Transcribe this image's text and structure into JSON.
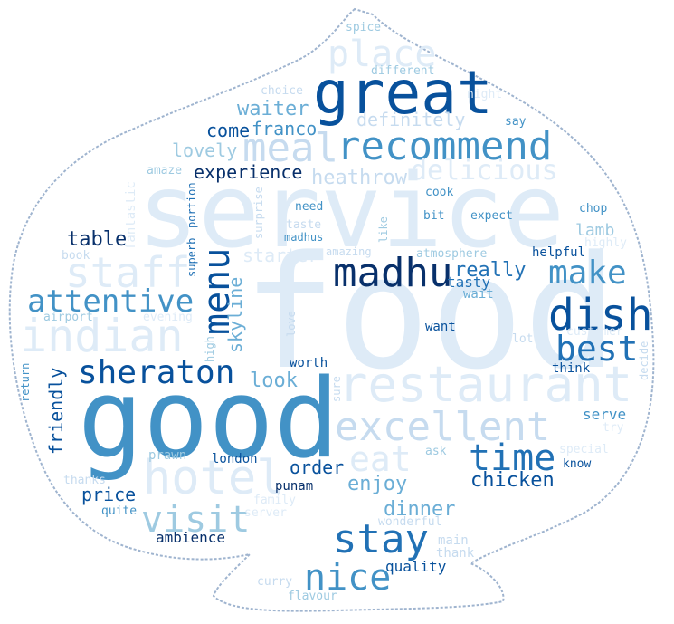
{
  "word_cloud": {
    "colors": {
      "background": "#ffffff",
      "outline": "#9fb4cf",
      "palette": [
        "#08306b",
        "#08519c",
        "#2171b5",
        "#4292c6",
        "#6baed6",
        "#9ecae1",
        "#c6dbef",
        "#deebf7"
      ]
    },
    "words": [
      {
        "id": "food",
        "text": "food"
      },
      {
        "id": "service",
        "text": "service"
      },
      {
        "id": "good",
        "text": "good"
      },
      {
        "id": "great",
        "text": "great"
      },
      {
        "id": "restaurant",
        "text": "restaurant"
      },
      {
        "id": "indian",
        "text": "indian"
      },
      {
        "id": "hotel",
        "text": "hotel"
      },
      {
        "id": "madhu",
        "text": "madhu"
      },
      {
        "id": "recommend",
        "text": "recommend"
      },
      {
        "id": "staff",
        "text": "staff"
      },
      {
        "id": "excellent",
        "text": "excellent"
      },
      {
        "id": "place",
        "text": "place"
      },
      {
        "id": "meal",
        "text": "meal"
      },
      {
        "id": "dish",
        "text": "dish"
      },
      {
        "id": "menu",
        "text": "menu"
      },
      {
        "id": "sheraton",
        "text": "sheraton"
      },
      {
        "id": "attentive",
        "text": "attentive"
      },
      {
        "id": "make",
        "text": "make"
      },
      {
        "id": "best",
        "text": "best"
      },
      {
        "id": "visit",
        "text": "visit"
      },
      {
        "id": "stay",
        "text": "stay"
      },
      {
        "id": "nice",
        "text": "nice"
      },
      {
        "id": "time",
        "text": "time"
      },
      {
        "id": "eat",
        "text": "eat"
      },
      {
        "id": "delicious",
        "text": "delicious"
      },
      {
        "id": "skyline",
        "text": "skyline"
      },
      {
        "id": "really",
        "text": "really"
      },
      {
        "id": "heathrow",
        "text": "heathrow"
      },
      {
        "id": "definitely",
        "text": "definitely"
      },
      {
        "id": "waiter",
        "text": "waiter"
      },
      {
        "id": "franco",
        "text": "franco"
      },
      {
        "id": "come",
        "text": "come"
      },
      {
        "id": "lovely",
        "text": "lovely"
      },
      {
        "id": "experience",
        "text": "experience"
      },
      {
        "id": "table",
        "text": "table"
      },
      {
        "id": "friendly",
        "text": "friendly"
      },
      {
        "id": "chicken",
        "text": "chicken"
      },
      {
        "id": "dinner",
        "text": "dinner"
      },
      {
        "id": "enjoy",
        "text": "enjoy"
      },
      {
        "id": "order",
        "text": "order"
      },
      {
        "id": "price",
        "text": "price"
      },
      {
        "id": "starter",
        "text": "starter"
      },
      {
        "id": "look",
        "text": "look"
      },
      {
        "id": "tasty",
        "text": "tasty"
      },
      {
        "id": "lamb",
        "text": "lamb"
      },
      {
        "id": "serve",
        "text": "serve"
      },
      {
        "id": "ambience",
        "text": "ambience"
      },
      {
        "id": "quality",
        "text": "quality"
      },
      {
        "id": "wait",
        "text": "wait"
      },
      {
        "id": "helpful",
        "text": "helpful"
      },
      {
        "id": "fantastic",
        "text": "fantastic"
      },
      {
        "id": "main",
        "text": "main"
      },
      {
        "id": "thank",
        "text": "thank"
      },
      {
        "id": "punam",
        "text": "punam"
      },
      {
        "id": "london",
        "text": "london"
      },
      {
        "id": "prawn",
        "text": "prawn"
      },
      {
        "id": "worth",
        "text": "worth"
      },
      {
        "id": "want",
        "text": "want"
      },
      {
        "id": "think",
        "text": "think"
      },
      {
        "id": "spice",
        "text": "spice"
      },
      {
        "id": "different",
        "text": "different"
      },
      {
        "id": "night",
        "text": "night"
      },
      {
        "id": "choice",
        "text": "choice"
      },
      {
        "id": "say",
        "text": "say"
      },
      {
        "id": "amaze",
        "text": "amaze"
      },
      {
        "id": "cook",
        "text": "cook"
      },
      {
        "id": "portion",
        "text": "portion"
      },
      {
        "id": "surprise",
        "text": "surprise"
      },
      {
        "id": "need",
        "text": "need"
      },
      {
        "id": "bit",
        "text": "bit"
      },
      {
        "id": "expect",
        "text": "expect"
      },
      {
        "id": "chop",
        "text": "chop"
      },
      {
        "id": "highly",
        "text": "highly"
      },
      {
        "id": "taste",
        "text": "taste"
      },
      {
        "id": "madhus",
        "text": "madhus"
      },
      {
        "id": "like",
        "text": "like"
      },
      {
        "id": "amazing",
        "text": "amazing"
      },
      {
        "id": "atmosphere",
        "text": "atmosphere"
      },
      {
        "id": "superb",
        "text": "superb"
      },
      {
        "id": "book",
        "text": "book"
      },
      {
        "id": "airport",
        "text": "airport"
      },
      {
        "id": "evening",
        "text": "evening"
      },
      {
        "id": "love",
        "text": "love"
      },
      {
        "id": "high",
        "text": "high"
      },
      {
        "id": "return",
        "text": "return"
      },
      {
        "id": "sure",
        "text": "sure"
      },
      {
        "id": "lot",
        "text": "lot"
      },
      {
        "id": "customer",
        "text": "customer"
      },
      {
        "id": "decide",
        "text": "decide"
      },
      {
        "id": "try",
        "text": "try"
      },
      {
        "id": "special",
        "text": "special"
      },
      {
        "id": "know",
        "text": "know"
      },
      {
        "id": "ask",
        "text": "ask"
      },
      {
        "id": "thanks",
        "text": "thanks"
      },
      {
        "id": "family",
        "text": "family"
      },
      {
        "id": "quite",
        "text": "quite"
      },
      {
        "id": "server",
        "text": "server"
      },
      {
        "id": "wonderful",
        "text": "wonderful"
      },
      {
        "id": "curry",
        "text": "curry"
      },
      {
        "id": "flavour",
        "text": "flavour"
      }
    ]
  }
}
